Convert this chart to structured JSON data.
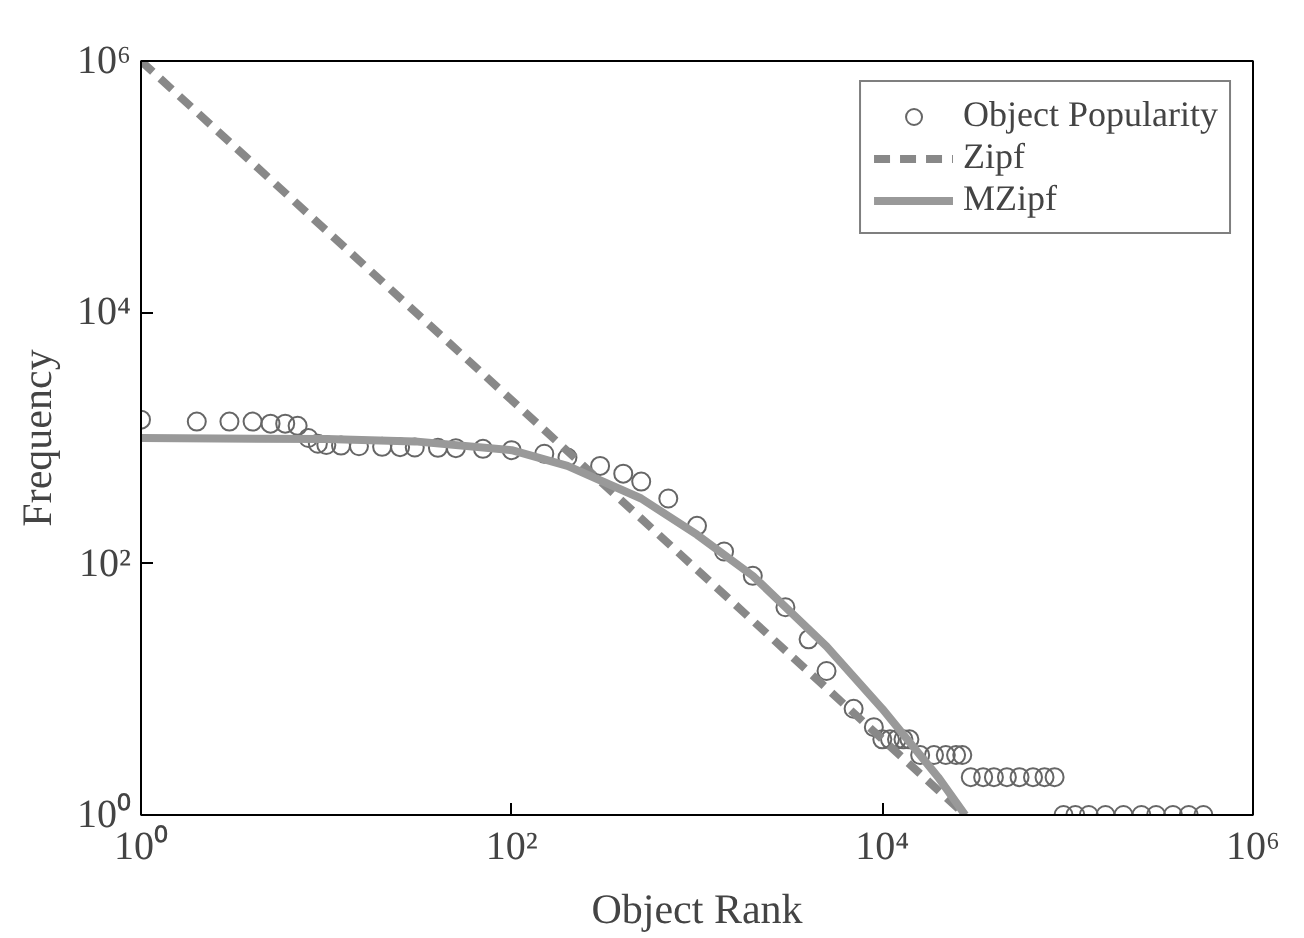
{
  "chart_data": {
    "type": "scatter",
    "xlabel": "Object Rank",
    "ylabel": "Frequency",
    "log": "xy",
    "grid": false,
    "legend": "top right",
    "xlim": [
      1,
      1000000
    ],
    "ylim": [
      1,
      1000000
    ],
    "xticks": [
      {
        "value": 1,
        "label": "10⁰"
      },
      {
        "value": 100,
        "label": "10²"
      },
      {
        "value": 10000,
        "label": "10⁴"
      },
      {
        "value": 1000000,
        "label": "10⁶"
      }
    ],
    "yticks": [
      {
        "value": 1,
        "label": "10⁰"
      },
      {
        "value": 100,
        "label": "10²"
      },
      {
        "value": 10000,
        "label": "10⁴"
      },
      {
        "value": 1000000,
        "label": "10⁶"
      }
    ],
    "series": [
      {
        "name": "Object Popularity",
        "marker": "circle",
        "color": "#666666",
        "x": [
          1,
          2,
          3,
          4,
          5,
          6,
          7,
          8,
          9,
          10,
          12,
          15,
          20,
          25,
          30,
          40,
          50,
          70,
          100,
          150,
          200,
          300,
          400,
          500,
          700,
          1000,
          1400,
          2000,
          3000,
          4000,
          5000,
          7000,
          9000,
          10000,
          11000,
          12000,
          13000,
          14000,
          16000,
          19000,
          22000,
          25000,
          27000,
          30000,
          35000,
          40000,
          47000,
          55000,
          65000,
          75000,
          85000,
          95000,
          110000,
          130000,
          160000,
          200000,
          250000,
          300000,
          370000,
          450000,
          540000
        ],
        "values": [
          1400,
          1350,
          1350,
          1350,
          1300,
          1300,
          1250,
          1000,
          900,
          880,
          870,
          860,
          850,
          845,
          840,
          835,
          830,
          820,
          800,
          750,
          700,
          600,
          520,
          450,
          330,
          200,
          125,
          80,
          45,
          25,
          14,
          7,
          5,
          4,
          4,
          4,
          4,
          4,
          3,
          3,
          3,
          3,
          3,
          2,
          2,
          2,
          2,
          2,
          2,
          2,
          2,
          1,
          1,
          1,
          1,
          1,
          1,
          1,
          1,
          1,
          1
        ]
      },
      {
        "name": "Zipf",
        "type": "line",
        "line_style": "dashed",
        "color": "#888888",
        "x": [
          1,
          28000
        ],
        "values": [
          1000000,
          1
        ]
      },
      {
        "name": "MZipf",
        "type": "line",
        "line_style": "solid",
        "color": "#999999",
        "x": [
          1,
          10,
          30,
          100,
          200,
          500,
          1000,
          2000,
          5000,
          10000,
          20000,
          28000
        ],
        "values": [
          1000,
          980,
          940,
          800,
          600,
          330,
          170,
          80,
          22,
          7,
          2,
          1
        ]
      }
    ]
  }
}
